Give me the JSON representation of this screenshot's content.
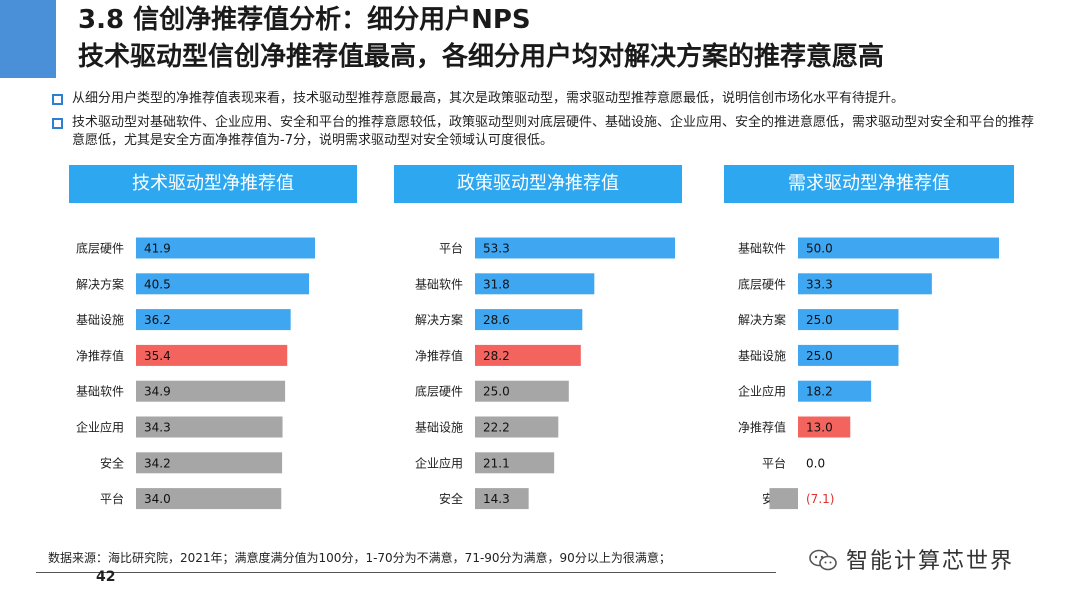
{
  "title": {
    "line1": "3.8 信创净推荐值分析：细分用户NPS",
    "line2": "技术驱动型信创净推荐值最高，各细分用户均对解决方案的推荐意愿高"
  },
  "bullets": [
    "从细分用户类型的净推荐值表现来看，技术驱动型推荐意愿最高，其次是政策驱动型，需求驱动型推荐意愿最低，说明信创市场化水平有待提升。",
    "技术驱动型对基础软件、企业应用、安全和平台的推荐意愿较低，政策驱动型则对底层硬件、基础设施、企业应用、安全的推进意愿低，需求驱动型对安全和平台的推荐意愿低，尤其是安全方面净推荐值为-7分，说明需求驱动型对安全领域认可度很低。"
  ],
  "colors": {
    "header": "#2da8f0",
    "bar_blue": "#3fa7f2",
    "bar_red": "#f4645f",
    "bar_gray": "#a6a6a6",
    "neg_label": "#e03030"
  },
  "chart_data": [
    {
      "type": "bar",
      "title": "技术驱动型净推荐值",
      "categories": [
        "底层硬件",
        "解决方案",
        "基础设施",
        "净推荐值",
        "基础软件",
        "企业应用",
        "安全",
        "平台"
      ],
      "values": [
        41.9,
        40.5,
        36.2,
        35.4,
        34.9,
        34.3,
        34.2,
        34.0
      ],
      "labels": [
        "41.9",
        "40.5",
        "36.2",
        "35.4",
        "34.9",
        "34.3",
        "34.2",
        "34.0"
      ],
      "bar_colors": [
        "blue",
        "blue",
        "blue",
        "red",
        "gray",
        "gray",
        "gray",
        "gray"
      ]
    },
    {
      "type": "bar",
      "title": "政策驱动型净推荐值",
      "categories": [
        "平台",
        "基础软件",
        "解决方案",
        "净推荐值",
        "底层硬件",
        "基础设施",
        "企业应用",
        "安全"
      ],
      "values": [
        53.3,
        31.8,
        28.6,
        28.2,
        25.0,
        22.2,
        21.1,
        14.3
      ],
      "labels": [
        "53.3",
        "31.8",
        "28.6",
        "28.2",
        "25.0",
        "22.2",
        "21.1",
        "14.3"
      ],
      "bar_colors": [
        "blue",
        "blue",
        "blue",
        "red",
        "gray",
        "gray",
        "gray",
        "gray"
      ]
    },
    {
      "type": "bar",
      "title": "需求驱动型净推荐值",
      "categories": [
        "基础软件",
        "底层硬件",
        "解决方案",
        "基础设施",
        "企业应用",
        "净推荐值",
        "平台",
        "安全"
      ],
      "values": [
        50.0,
        33.3,
        25.0,
        25.0,
        18.2,
        13.0,
        0.0,
        -7.1
      ],
      "labels": [
        "50.0",
        "33.3",
        "25.0",
        "25.0",
        "18.2",
        "13.0",
        "0.0",
        "(7.1)"
      ],
      "bar_colors": [
        "blue",
        "blue",
        "blue",
        "blue",
        "blue",
        "red",
        "gray",
        "gray"
      ]
    }
  ],
  "footer": {
    "source": "数据来源：海比研究院，2021年；满意度满分值为100分，1-70分为不满意，71-90分为满意，90分以上为很满意；",
    "page_number": "42",
    "brand": "智能计算芯世界"
  }
}
